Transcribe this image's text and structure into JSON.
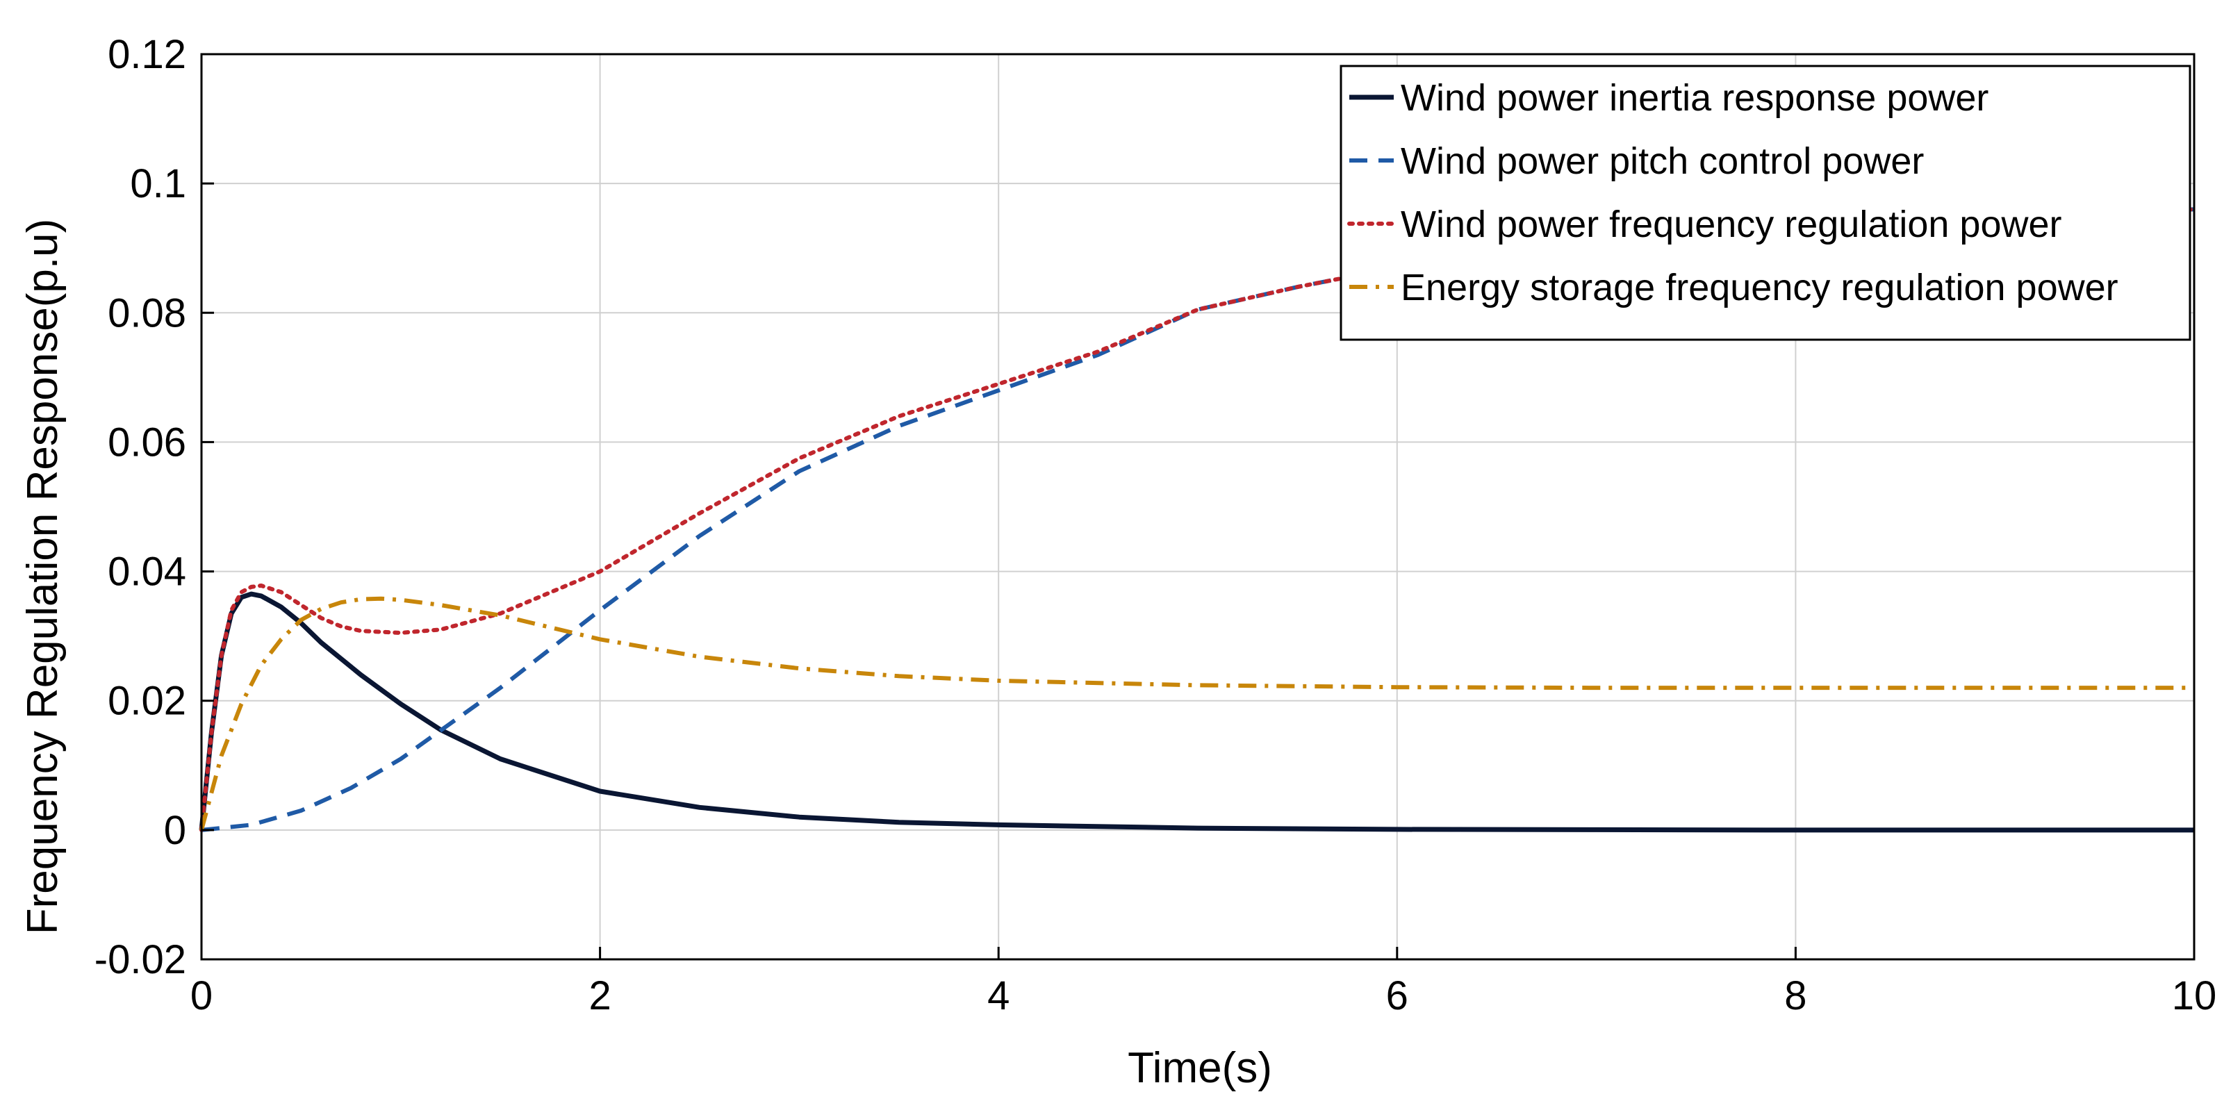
{
  "chart_data": {
    "type": "line",
    "title": "",
    "xlabel": "Time(s)",
    "ylabel": "Frequency Regulation Response(p.u)",
    "xlim": [
      0,
      10
    ],
    "ylim": [
      -0.02,
      0.12
    ],
    "xticks": [
      0,
      2,
      4,
      6,
      8,
      10
    ],
    "xtick_labels": [
      "0",
      "2",
      "4",
      "6",
      "8",
      "10"
    ],
    "yticks": [
      -0.02,
      0,
      0.02,
      0.04,
      0.06,
      0.08,
      0.1,
      0.12
    ],
    "ytick_labels": [
      "-0.02",
      "0",
      "0.02",
      "0.04",
      "0.06",
      "0.08",
      "0.1",
      "0.12"
    ],
    "grid": true,
    "legend_position": "top-right",
    "series": [
      {
        "name": "Wind power inertia response power",
        "color": "#0a1633",
        "dash": "solid",
        "x": [
          0,
          0.05,
          0.1,
          0.15,
          0.2,
          0.25,
          0.3,
          0.4,
          0.5,
          0.6,
          0.7,
          0.8,
          1.0,
          1.2,
          1.5,
          2.0,
          2.5,
          3.0,
          3.5,
          4.0,
          5.0,
          6.0,
          7.0,
          8.0,
          9.0,
          10.0
        ],
        "y": [
          0,
          0.015,
          0.027,
          0.0335,
          0.036,
          0.0365,
          0.0362,
          0.0345,
          0.032,
          0.029,
          0.0265,
          0.024,
          0.0195,
          0.0155,
          0.011,
          0.006,
          0.0035,
          0.002,
          0.0012,
          0.0008,
          0.0003,
          0.0001,
          5e-05,
          0,
          0,
          0
        ]
      },
      {
        "name": "Wind power pitch control power",
        "color": "#1f5aa6",
        "dash": "dashed",
        "x": [
          0,
          0.25,
          0.5,
          0.75,
          1.0,
          1.25,
          1.5,
          1.75,
          2.0,
          2.5,
          3.0,
          3.5,
          4.0,
          4.5,
          5.0,
          5.5,
          6.0,
          6.5,
          7.0,
          7.5,
          8.0,
          8.5,
          9.0,
          9.5,
          10.0
        ],
        "y": [
          0,
          0.0008,
          0.003,
          0.0065,
          0.011,
          0.0165,
          0.022,
          0.028,
          0.034,
          0.0455,
          0.0555,
          0.0625,
          0.068,
          0.0735,
          0.0805,
          0.084,
          0.087,
          0.0895,
          0.0915,
          0.093,
          0.094,
          0.0948,
          0.0953,
          0.0957,
          0.096
        ]
      },
      {
        "name": "Wind power frequency regulation power",
        "color": "#c0262d",
        "dash": "dotted",
        "x": [
          0,
          0.05,
          0.1,
          0.15,
          0.2,
          0.25,
          0.3,
          0.4,
          0.5,
          0.6,
          0.7,
          0.8,
          1.0,
          1.2,
          1.5,
          2.0,
          2.5,
          3.0,
          3.5,
          4.0,
          4.5,
          5.0,
          5.5,
          6.0,
          7.0,
          8.0,
          9.0,
          10.0
        ],
        "y": [
          0,
          0.015,
          0.027,
          0.034,
          0.0368,
          0.0376,
          0.0378,
          0.0368,
          0.0348,
          0.0328,
          0.0315,
          0.0308,
          0.0305,
          0.031,
          0.0335,
          0.04,
          0.049,
          0.0575,
          0.064,
          0.069,
          0.074,
          0.0805,
          0.084,
          0.087,
          0.0915,
          0.094,
          0.0953,
          0.096
        ]
      },
      {
        "name": "Energy storage frequency regulation power",
        "color": "#c8860a",
        "dash": "dashdot",
        "x": [
          0,
          0.1,
          0.2,
          0.3,
          0.4,
          0.5,
          0.6,
          0.7,
          0.8,
          0.9,
          1.0,
          1.2,
          1.5,
          2.0,
          2.5,
          3.0,
          3.5,
          4.0,
          5.0,
          6.0,
          7.0,
          8.0,
          9.0,
          10.0
        ],
        "y": [
          0,
          0.0115,
          0.0195,
          0.0255,
          0.0295,
          0.0325,
          0.0342,
          0.0352,
          0.0357,
          0.0358,
          0.0356,
          0.0348,
          0.0332,
          0.0295,
          0.0268,
          0.025,
          0.0238,
          0.0231,
          0.0224,
          0.0221,
          0.022,
          0.022,
          0.022,
          0.022
        ]
      }
    ]
  }
}
